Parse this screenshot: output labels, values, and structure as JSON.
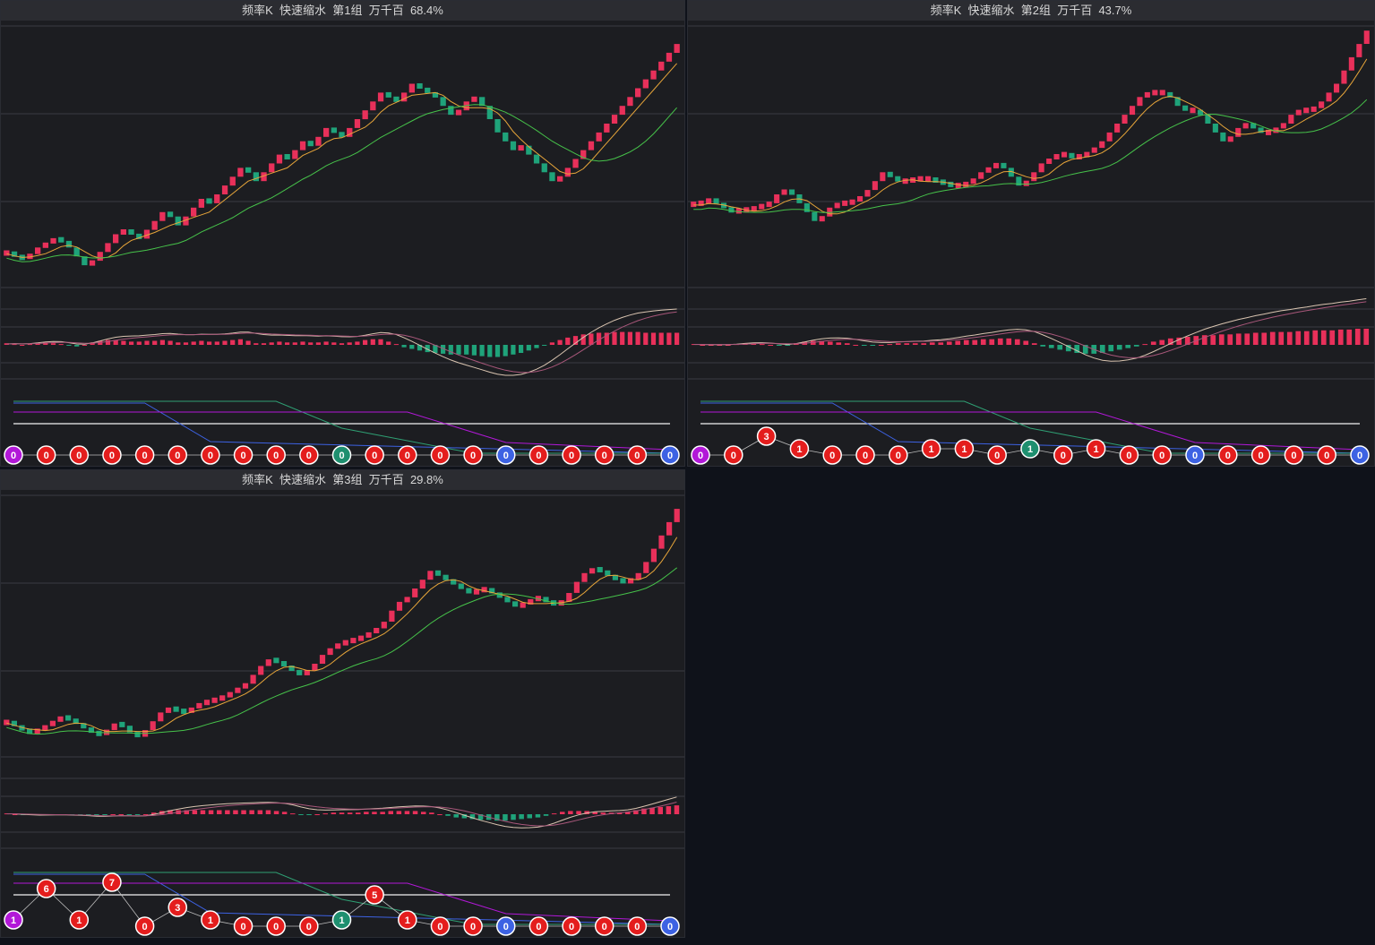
{
  "colors": {
    "up": "#e8305a",
    "down": "#1fa37a",
    "ma_short": "#e8a63a",
    "ma_long": "#46c24a",
    "dif": "#d9c4b0",
    "dea": "#a8577a",
    "badge_red": "#e41d1d",
    "badge_purple": "#b218d8",
    "badge_green": "#1e8f6f",
    "badge_blue": "#3d62e3",
    "line_blue": "#3d62e3",
    "line_green": "#2fa074",
    "line_purple": "#b218d8",
    "line_white": "#cfcfcf"
  },
  "chart_data": [
    {
      "type": "candlestick",
      "title": "频率K  快速缩水  第1组  万千百  68.4%",
      "trend": [
        0.08,
        0.06,
        0.05,
        0.07,
        0.1,
        0.12,
        0.14,
        0.13,
        0.1,
        0.06,
        0.02,
        0.04,
        0.08,
        0.12,
        0.16,
        0.18,
        0.16,
        0.14,
        0.18,
        0.22,
        0.26,
        0.24,
        0.2,
        0.24,
        0.28,
        0.32,
        0.3,
        0.34,
        0.38,
        0.42,
        0.46,
        0.44,
        0.4,
        0.44,
        0.48,
        0.52,
        0.5,
        0.54,
        0.58,
        0.56,
        0.6,
        0.64,
        0.62,
        0.6,
        0.64,
        0.68,
        0.72,
        0.76,
        0.8,
        0.78,
        0.76,
        0.8,
        0.84,
        0.82,
        0.8,
        0.78,
        0.74,
        0.7,
        0.72,
        0.76,
        0.78,
        0.74,
        0.68,
        0.62,
        0.58,
        0.54,
        0.56,
        0.52,
        0.48,
        0.44,
        0.4,
        0.42,
        0.46,
        0.5,
        0.54,
        0.58,
        0.62,
        0.66,
        0.7,
        0.74,
        0.78,
        0.82,
        0.86,
        0.9,
        0.94,
        0.98,
        1.02
      ],
      "macd_hist": [
        0.02,
        0.01,
        0,
        0.01,
        0.02,
        0.03,
        0.02,
        0.01,
        -0.01,
        -0.02,
        0,
        0.03,
        0.05,
        0.06,
        0.06,
        0.05,
        0.04,
        0.04,
        0.05,
        0.05,
        0.06,
        0.05,
        0.03,
        0.03,
        0.04,
        0.05,
        0.04,
        0.04,
        0.05,
        0.06,
        0.07,
        0.05,
        0.02,
        0.02,
        0.03,
        0.04,
        0.03,
        0.03,
        0.04,
        0.03,
        0.03,
        0.04,
        0.03,
        0.02,
        0.03,
        0.04,
        0.06,
        0.07,
        0.07,
        0.04,
        0.01,
        -0.03,
        -0.05,
        -0.07,
        -0.09,
        -0.1,
        -0.11,
        -0.12,
        -0.12,
        -0.12,
        -0.13,
        -0.14,
        -0.15,
        -0.15,
        -0.14,
        -0.12,
        -0.1,
        -0.07,
        -0.04,
        -0.01,
        0.03,
        0.06,
        0.09,
        0.11,
        0.13,
        0.14,
        0.15,
        0.15,
        0.16,
        0.16,
        0.16,
        0.16,
        0.15,
        0.15,
        0.15,
        0.15,
        0.15
      ],
      "badges": [
        {
          "v": "0",
          "c": "purple",
          "lvl": 0
        },
        {
          "v": "0",
          "c": "red",
          "lvl": 0
        },
        {
          "v": "0",
          "c": "red",
          "lvl": 0
        },
        {
          "v": "0",
          "c": "red",
          "lvl": 0
        },
        {
          "v": "0",
          "c": "red",
          "lvl": 0
        },
        {
          "v": "0",
          "c": "red",
          "lvl": 0
        },
        {
          "v": "0",
          "c": "red",
          "lvl": 0
        },
        {
          "v": "0",
          "c": "red",
          "lvl": 0
        },
        {
          "v": "0",
          "c": "red",
          "lvl": 0
        },
        {
          "v": "0",
          "c": "red",
          "lvl": 0
        },
        {
          "v": "0",
          "c": "green",
          "lvl": 0
        },
        {
          "v": "0",
          "c": "red",
          "lvl": 0
        },
        {
          "v": "0",
          "c": "red",
          "lvl": 0
        },
        {
          "v": "0",
          "c": "red",
          "lvl": 0
        },
        {
          "v": "0",
          "c": "red",
          "lvl": 0
        },
        {
          "v": "0",
          "c": "blue",
          "lvl": 0
        },
        {
          "v": "0",
          "c": "red",
          "lvl": 0
        },
        {
          "v": "0",
          "c": "red",
          "lvl": 0
        },
        {
          "v": "0",
          "c": "red",
          "lvl": 0
        },
        {
          "v": "0",
          "c": "red",
          "lvl": 0
        },
        {
          "v": "0",
          "c": "blue",
          "lvl": 0
        }
      ]
    },
    {
      "type": "candlestick",
      "title": "频率K  快速缩水  第2组  万千百  43.7%",
      "trend": [
        0.3,
        0.3,
        0.32,
        0.3,
        0.28,
        0.26,
        0.27,
        0.27,
        0.28,
        0.29,
        0.3,
        0.34,
        0.36,
        0.34,
        0.3,
        0.26,
        0.22,
        0.24,
        0.28,
        0.3,
        0.3,
        0.31,
        0.33,
        0.36,
        0.4,
        0.44,
        0.42,
        0.4,
        0.4,
        0.41,
        0.41,
        0.41,
        0.4,
        0.39,
        0.38,
        0.38,
        0.39,
        0.41,
        0.44,
        0.46,
        0.48,
        0.46,
        0.42,
        0.38,
        0.4,
        0.44,
        0.48,
        0.5,
        0.52,
        0.52,
        0.51,
        0.51,
        0.53,
        0.55,
        0.58,
        0.62,
        0.66,
        0.7,
        0.74,
        0.78,
        0.8,
        0.8,
        0.8,
        0.78,
        0.74,
        0.72,
        0.72,
        0.7,
        0.66,
        0.62,
        0.58,
        0.6,
        0.64,
        0.66,
        0.64,
        0.62,
        0.62,
        0.64,
        0.66,
        0.7,
        0.72,
        0.72,
        0.73,
        0.76,
        0.8,
        0.84,
        0.9,
        0.96,
        1.02,
        1.08
      ],
      "macd_hist": [
        0.01,
        0,
        0,
        0,
        0,
        0.01,
        0.02,
        0.02,
        0.01,
        0,
        -0.01,
        -0.01,
        0.02,
        0.04,
        0.05,
        0.05,
        0.04,
        0.03,
        0.02,
        0,
        -0.01,
        -0.01,
        0,
        0.01,
        0.02,
        0.02,
        0.02,
        0.02,
        0.03,
        0.03,
        0.04,
        0.05,
        0.06,
        0.06,
        0.07,
        0.07,
        0.08,
        0.08,
        0.07,
        0.05,
        0.02,
        -0.02,
        -0.04,
        -0.06,
        -0.08,
        -0.1,
        -0.11,
        -0.11,
        -0.1,
        -0.08,
        -0.06,
        -0.04,
        -0.02,
        0.01,
        0.04,
        0.06,
        0.08,
        0.09,
        0.1,
        0.11,
        0.12,
        0.12,
        0.13,
        0.13,
        0.14,
        0.14,
        0.15,
        0.15,
        0.16,
        0.16,
        0.16,
        0.17,
        0.17,
        0.18,
        0.18,
        0.18,
        0.19,
        0.19,
        0.2,
        0.2
      ],
      "badges": [
        {
          "v": "0",
          "c": "purple",
          "lvl": 0
        },
        {
          "v": "0",
          "c": "red",
          "lvl": 0
        },
        {
          "v": "3",
          "c": "red",
          "lvl": 3
        },
        {
          "v": "1",
          "c": "red",
          "lvl": 1
        },
        {
          "v": "0",
          "c": "red",
          "lvl": 0
        },
        {
          "v": "0",
          "c": "red",
          "lvl": 0
        },
        {
          "v": "0",
          "c": "red",
          "lvl": 0
        },
        {
          "v": "1",
          "c": "red",
          "lvl": 1
        },
        {
          "v": "1",
          "c": "red",
          "lvl": 1
        },
        {
          "v": "0",
          "c": "red",
          "lvl": 0
        },
        {
          "v": "1",
          "c": "green",
          "lvl": 1
        },
        {
          "v": "0",
          "c": "red",
          "lvl": 0
        },
        {
          "v": "1",
          "c": "red",
          "lvl": 1
        },
        {
          "v": "0",
          "c": "red",
          "lvl": 0
        },
        {
          "v": "0",
          "c": "red",
          "lvl": 0
        },
        {
          "v": "0",
          "c": "blue",
          "lvl": 0
        },
        {
          "v": "0",
          "c": "red",
          "lvl": 0
        },
        {
          "v": "0",
          "c": "red",
          "lvl": 0
        },
        {
          "v": "0",
          "c": "red",
          "lvl": 0
        },
        {
          "v": "0",
          "c": "red",
          "lvl": 0
        },
        {
          "v": "0",
          "c": "blue",
          "lvl": 0
        }
      ]
    },
    {
      "type": "candlestick",
      "title": "频率K  快速缩水  第3组  万千百  29.8%",
      "trend": [
        0.08,
        0.06,
        0.04,
        0.03,
        0.04,
        0.06,
        0.08,
        0.1,
        0.09,
        0.07,
        0.05,
        0.03,
        0.02,
        0.04,
        0.07,
        0.06,
        0.03,
        0.01,
        0.04,
        0.08,
        0.12,
        0.14,
        0.13,
        0.12,
        0.14,
        0.16,
        0.17,
        0.18,
        0.19,
        0.21,
        0.23,
        0.25,
        0.29,
        0.33,
        0.36,
        0.35,
        0.33,
        0.31,
        0.29,
        0.31,
        0.34,
        0.38,
        0.41,
        0.43,
        0.44,
        0.45,
        0.46,
        0.48,
        0.5,
        0.53,
        0.58,
        0.62,
        0.64,
        0.68,
        0.72,
        0.76,
        0.74,
        0.72,
        0.7,
        0.68,
        0.66,
        0.67,
        0.68,
        0.66,
        0.64,
        0.62,
        0.6,
        0.61,
        0.63,
        0.64,
        0.62,
        0.61,
        0.62,
        0.66,
        0.71,
        0.75,
        0.77,
        0.76,
        0.74,
        0.72,
        0.71,
        0.72,
        0.75,
        0.8,
        0.86,
        0.92,
        0.98,
        1.04
      ],
      "macd_hist": [
        0.01,
        0,
        -0.01,
        -0.01,
        -0.01,
        0,
        0,
        0,
        -0.01,
        -0.01,
        -0.01,
        -0.02,
        -0.01,
        0,
        0,
        -0.01,
        -0.01,
        0,
        0.02,
        0.04,
        0.05,
        0.05,
        0.05,
        0.05,
        0.05,
        0.05,
        0.05,
        0.05,
        0.05,
        0.05,
        0.05,
        0.05,
        0.05,
        0.04,
        0.03,
        0.01,
        -0.01,
        -0.01,
        0,
        0.01,
        0.02,
        0.02,
        0.02,
        0.02,
        0.03,
        0.03,
        0.03,
        0.04,
        0.04,
        0.04,
        0.04,
        0.03,
        0.02,
        0,
        -0.02,
        -0.04,
        -0.05,
        -0.06,
        -0.07,
        -0.07,
        -0.08,
        -0.08,
        -0.07,
        -0.06,
        -0.05,
        -0.04,
        -0.02,
        0.01,
        0.03,
        0.04,
        0.04,
        0.04,
        0.03,
        0.02,
        0.02,
        0.02,
        0.03,
        0.05,
        0.07,
        0.08,
        0.09,
        0.1,
        0.11
      ],
      "badges": [
        {
          "v": "1",
          "c": "purple",
          "lvl": 1
        },
        {
          "v": "6",
          "c": "red",
          "lvl": 6
        },
        {
          "v": "1",
          "c": "red",
          "lvl": 1
        },
        {
          "v": "7",
          "c": "red",
          "lvl": 7
        },
        {
          "v": "0",
          "c": "red",
          "lvl": 0
        },
        {
          "v": "3",
          "c": "red",
          "lvl": 3
        },
        {
          "v": "1",
          "c": "red",
          "lvl": 1
        },
        {
          "v": "0",
          "c": "red",
          "lvl": 0
        },
        {
          "v": "0",
          "c": "red",
          "lvl": 0
        },
        {
          "v": "0",
          "c": "red",
          "lvl": 0
        },
        {
          "v": "1",
          "c": "green",
          "lvl": 1
        },
        {
          "v": "5",
          "c": "red",
          "lvl": 5
        },
        {
          "v": "1",
          "c": "red",
          "lvl": 1
        },
        {
          "v": "0",
          "c": "red",
          "lvl": 0
        },
        {
          "v": "0",
          "c": "red",
          "lvl": 0
        },
        {
          "v": "0",
          "c": "blue",
          "lvl": 0
        },
        {
          "v": "0",
          "c": "red",
          "lvl": 0
        },
        {
          "v": "0",
          "c": "red",
          "lvl": 0
        },
        {
          "v": "0",
          "c": "red",
          "lvl": 0
        },
        {
          "v": "0",
          "c": "red",
          "lvl": 0
        },
        {
          "v": "0",
          "c": "blue",
          "lvl": 0
        }
      ]
    }
  ]
}
